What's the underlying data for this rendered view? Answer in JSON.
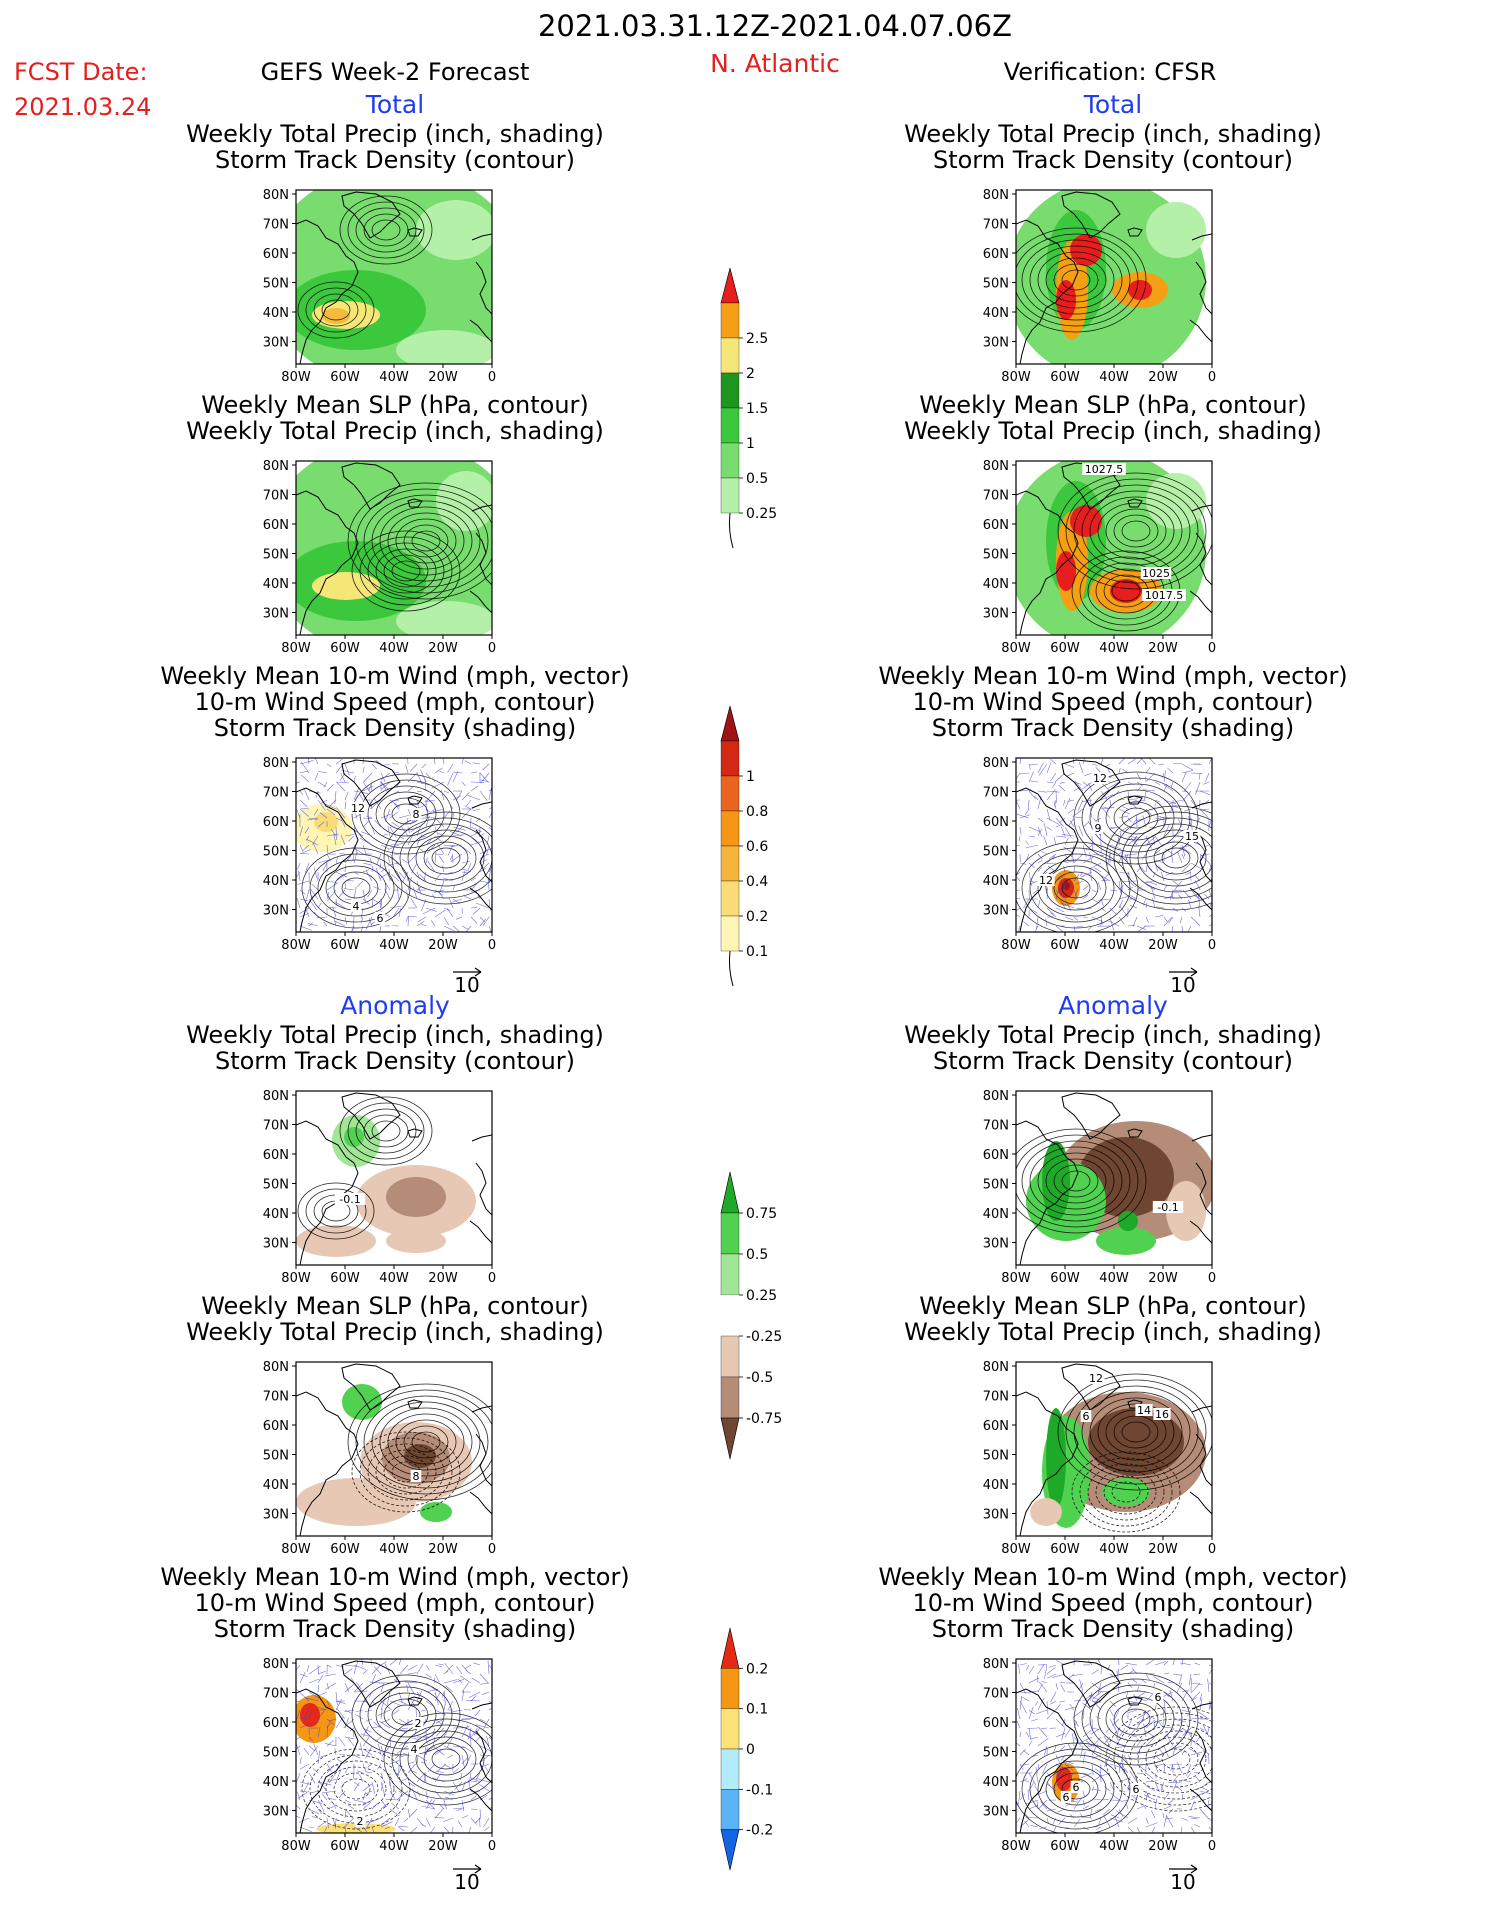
{
  "header": {
    "date_range": "2021.03.31.12Z-2021.04.07.06Z",
    "region": "N. Atlantic",
    "fcst_label": "FCST Date:",
    "fcst_date": "2021.03.24",
    "left_title": "GEFS Week-2 Forecast",
    "right_title": "Verification: CFSR"
  },
  "section_labels": {
    "total": "Total",
    "anomaly": "Anomaly"
  },
  "panel_titles": {
    "precip": [
      "Weekly Total Precip (inch, shading)",
      "Storm Track Density (contour)"
    ],
    "slp": [
      "Weekly Mean SLP (hPa, contour)",
      "Weekly Total Precip (inch, shading)"
    ],
    "wind": [
      "Weekly Mean 10-m Wind (mph, vector)",
      "10-m Wind Speed (mph, contour)",
      "Storm Track Density (shading)"
    ]
  },
  "axes": {
    "lat_ticks": [
      "80N",
      "70N",
      "60N",
      "50N",
      "40N",
      "30N"
    ],
    "lon_ticks": [
      "80W",
      "60W",
      "40W",
      "20W",
      "0"
    ],
    "vector_ref": "10"
  },
  "colorbars": {
    "precip_total": {
      "labels": [
        "0.25",
        "0.5",
        "1",
        "1.5",
        "2",
        "2.5"
      ],
      "colors": [
        "#b4f0a8",
        "#78dc6e",
        "#3cc83c",
        "#1e961e",
        "#f5e678",
        "#f5a014",
        "#e61e1e"
      ]
    },
    "std_total": {
      "labels": [
        "0.1",
        "0.2",
        "0.4",
        "0.6",
        "0.8",
        "1"
      ],
      "colors": [
        "#fff5b4",
        "#fadc78",
        "#f5b43c",
        "#f59614",
        "#eb641e",
        "#d22814",
        "#a01414"
      ]
    },
    "precip_anom": {
      "labels": [
        "0.75",
        "0.5",
        "0.25",
        "-0.25",
        "-0.5",
        "-0.75"
      ],
      "colors": [
        "#1eaa28",
        "#50d250",
        "#a0e696",
        "#ffffff",
        "#e6c8b4",
        "#b48c78",
        "#6e4632"
      ]
    },
    "std_anom": {
      "labels": [
        "0.2",
        "0.1",
        "0",
        "-0.1",
        "-0.2"
      ],
      "colors": [
        "#e62814",
        "#f59614",
        "#fae178",
        "#b4ebfa",
        "#5ab4f5",
        "#1464e6"
      ]
    }
  },
  "contour_labels": {
    "gefs_wind_total": [
      "12",
      "8",
      "4",
      "6"
    ],
    "cfsr_wind_total": [
      "12",
      "9",
      "15",
      "12"
    ],
    "cfsr_slp_total": [
      "1027.5",
      "1025",
      "1017.5"
    ],
    "gefs_precip_anom": [
      "-0.1"
    ],
    "cfsr_precip_anom": [
      "-0.1"
    ],
    "gefs_slp_anom": [
      "8"
    ],
    "cfsr_slp_anom": [
      "12",
      "14",
      "16",
      "6"
    ],
    "gefs_wind_anom": [
      "2",
      "4",
      "2"
    ],
    "cfsr_wind_anom": [
      "6",
      "6",
      "6",
      "6"
    ]
  }
}
